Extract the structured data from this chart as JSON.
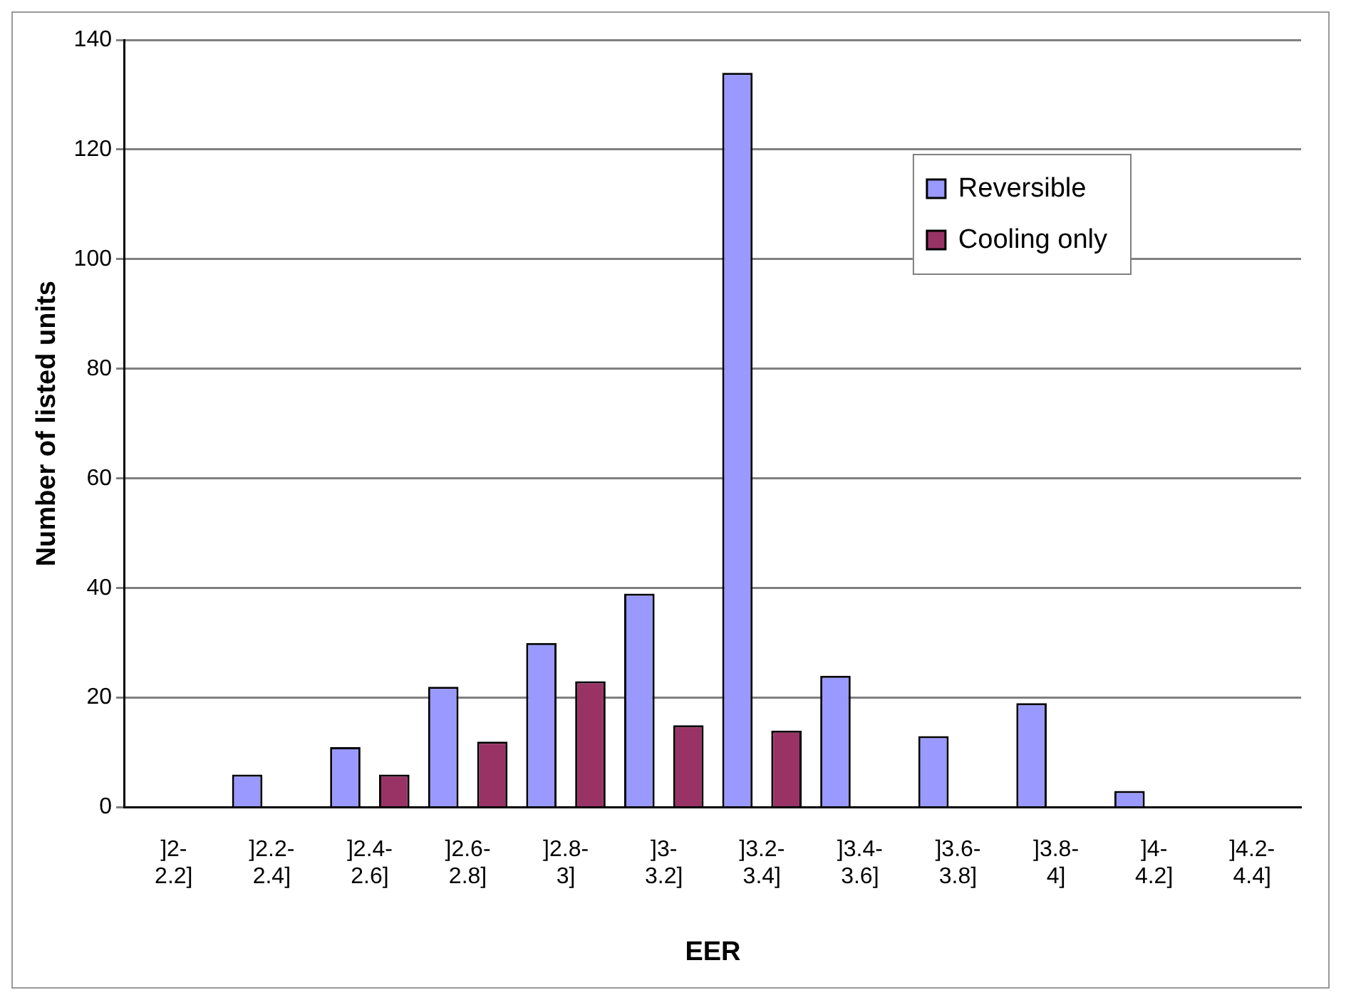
{
  "chart_data": {
    "type": "bar",
    "xlabel": "EER",
    "ylabel": "Number of listed units",
    "categories": [
      "]2-2.2]",
      "]2.2-2.4]",
      "]2.4-2.6]",
      "]2.6-2.8]",
      "]2.8-3]",
      "]3-3.2]",
      "]3.2-3.4]",
      "]3.4-3.6]",
      "]3.6-3.8]",
      "]3.8-4]",
      "]4-4.2]",
      "]4.2-4.4]"
    ],
    "series": [
      {
        "name": "Reversible",
        "color": "#9999ff",
        "values": [
          0,
          6,
          11,
          22,
          30,
          39,
          134,
          24,
          13,
          19,
          3,
          0
        ]
      },
      {
        "name": "Cooling only",
        "color": "#993366",
        "values": [
          0,
          0,
          6,
          12,
          23,
          15,
          14,
          0,
          0,
          0,
          0,
          0
        ]
      }
    ],
    "ylim": [
      0,
      140
    ],
    "yticks": [
      0,
      20,
      40,
      60,
      80,
      100,
      120,
      140
    ],
    "grid": "y",
    "legend": "top right"
  }
}
